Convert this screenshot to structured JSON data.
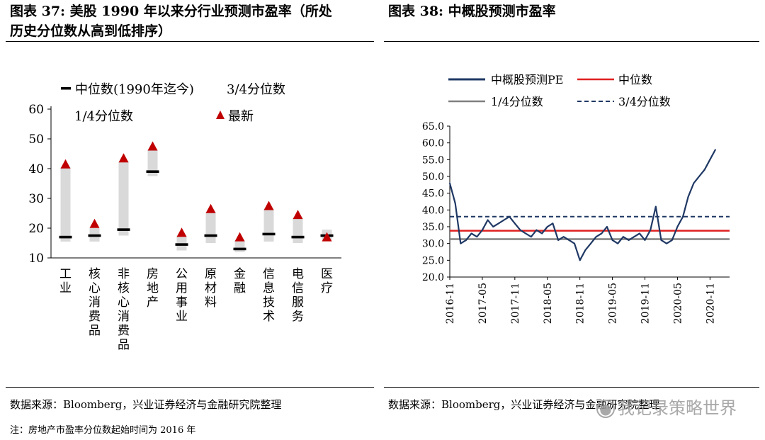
{
  "left": {
    "title_line1": "图表 37:  美股 1990 年以来分行业预测市盈率（所处",
    "title_line2": "历史分位数从高到低排序）",
    "source": "数据来源：Bloomberg，兴业证券经济与金融研究院整理",
    "note": "注：房地产市盈率分位数起始时间为 2016 年"
  },
  "right": {
    "title": "图表 38:  中概股预测市盈率",
    "source": "数据来源：Bloomberg，兴业证券经济与金融研究院整理"
  },
  "watermark": "我记录策略世界",
  "colors": {
    "bar": "#d9d9d9",
    "median": "#000000",
    "latest": "#c00000",
    "pe_line": "#1f3864",
    "median_line": "#e02020",
    "q1_line": "#808080",
    "q3_line": "#1f3864"
  },
  "chart_data": [
    {
      "type": "bar",
      "legend": {
        "median": "中位数(1990年迄今)",
        "q3": "3/4分位数",
        "q1": "1/4分位数",
        "latest": "最新"
      },
      "categories": [
        "工业",
        "核心消费品",
        "非核心消费品",
        "房地产",
        "公用事业",
        "原材料",
        "金融",
        "信息技术",
        "电信服务",
        "医疗"
      ],
      "q1": [
        15.5,
        15.5,
        17.5,
        37.5,
        12.5,
        15,
        12,
        15.5,
        15,
        16
      ],
      "q3": [
        40.5,
        20,
        42.5,
        46.5,
        17.5,
        25.5,
        16,
        26.5,
        23.5,
        19.5
      ],
      "median": [
        17,
        17.5,
        19.5,
        39,
        14.5,
        17.5,
        13,
        18,
        17,
        17.5
      ],
      "latest": [
        41.5,
        21.5,
        43.5,
        47.5,
        18.5,
        26.5,
        17,
        27.5,
        24.5,
        17
      ],
      "ylim": [
        10,
        60
      ],
      "yticks": [
        "60",
        "50",
        "40",
        "30",
        "20",
        "10"
      ]
    },
    {
      "type": "line",
      "legend": {
        "pe": "中概股预测PE",
        "median": "中位数",
        "q1": "1/4分位数",
        "q3": "3/4分位数"
      },
      "x_ticks": [
        "2016-11",
        "2017-05",
        "2017-11",
        "2018-05",
        "2018-11",
        "2019-05",
        "2019-11",
        "2020-05",
        "2020-11"
      ],
      "y_ticks": [
        "65.0",
        "60.0",
        "55.0",
        "50.0",
        "45.0",
        "40.0",
        "35.0",
        "30.0",
        "25.0",
        "20.0"
      ],
      "ylim": [
        20,
        65
      ],
      "median": 33.8,
      "q1": 31.3,
      "q3": 38.0,
      "series": [
        {
          "x": [
            "2016-11",
            "2016-12",
            "2017-01",
            "2017-02",
            "2017-03",
            "2017-04",
            "2017-05",
            "2017-06",
            "2017-07",
            "2017-08",
            "2017-09",
            "2017-10",
            "2017-11",
            "2017-12",
            "2018-01",
            "2018-02",
            "2018-03",
            "2018-04",
            "2018-05",
            "2018-06",
            "2018-07",
            "2018-08",
            "2018-09",
            "2018-10",
            "2018-11",
            "2018-12",
            "2019-01",
            "2019-02",
            "2019-03",
            "2019-04",
            "2019-05",
            "2019-06",
            "2019-07",
            "2019-08",
            "2019-09",
            "2019-10",
            "2019-11",
            "2019-12",
            "2020-01",
            "2020-02",
            "2020-03",
            "2020-04",
            "2020-05",
            "2020-06",
            "2020-07",
            "2020-08",
            "2020-09",
            "2020-10",
            "2020-11",
            "2020-12"
          ],
          "values": [
            48,
            42,
            30,
            31,
            33,
            32,
            34,
            37,
            35,
            36,
            37,
            38,
            36,
            34,
            33,
            32,
            34,
            33,
            35,
            36,
            31,
            32,
            31,
            30,
            25,
            28,
            30,
            32,
            33,
            35,
            31,
            30,
            32,
            31,
            32,
            33,
            31,
            34,
            41,
            31,
            30,
            31,
            35,
            38,
            44,
            48,
            50,
            52,
            55,
            58
          ]
        }
      ]
    }
  ]
}
